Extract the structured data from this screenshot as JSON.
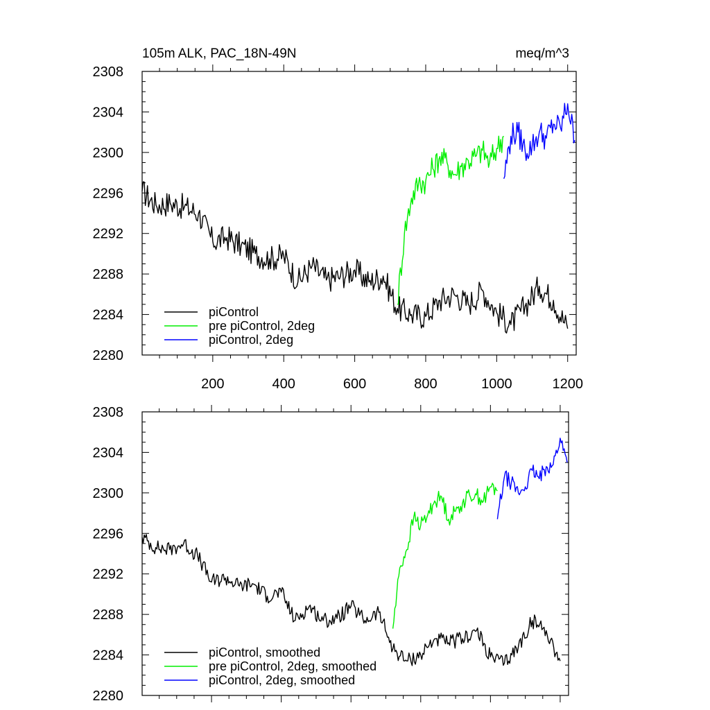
{
  "colors": {
    "piControl": "#000000",
    "pre_piControl_2deg": "#00ee00",
    "piControl_2deg": "#0000ff"
  },
  "chart_data": [
    {
      "type": "line",
      "title": "105m ALK, PAC_18N-49N",
      "units": "meq/m^3",
      "xlim": [
        1,
        1224
      ],
      "ylim": [
        2280,
        2308
      ],
      "xticks": [
        200,
        400,
        600,
        800,
        1000,
        1200
      ],
      "xtick_labels": [
        "200",
        "400",
        "600",
        "800",
        "1000",
        "1200"
      ],
      "yticks": [
        2280,
        2284,
        2288,
        2292,
        2296,
        2300,
        2304,
        2308
      ],
      "ytick_labels": [
        "2280",
        "2284",
        "2288",
        "2292",
        "2296",
        "2300",
        "2304",
        "2308"
      ],
      "grid": false,
      "legend": "bottom-left",
      "series": [
        {
          "name": "piControl",
          "color": "#000000",
          "x": [
            1,
            40,
            80,
            120,
            160,
            200,
            240,
            280,
            320,
            360,
            400,
            440,
            480,
            520,
            560,
            600,
            640,
            680,
            720,
            760,
            800,
            840,
            880,
            920,
            960,
            1000,
            1040,
            1080,
            1120,
            1160,
            1200
          ],
          "y": [
            2296.2,
            2294.8,
            2295.0,
            2294.6,
            2294.0,
            2291.2,
            2291.6,
            2290.8,
            2290.0,
            2289.5,
            2289.8,
            2287.2,
            2288.8,
            2287.4,
            2287.8,
            2288.4,
            2287.2,
            2287.8,
            2284.6,
            2284.0,
            2283.8,
            2285.4,
            2286.0,
            2285.0,
            2286.4,
            2284.2,
            2283.0,
            2284.8,
            2286.8,
            2285.4,
            2282.6
          ]
        },
        {
          "name": "pre piControl, 2deg",
          "color": "#00ee00",
          "x": [
            720,
            740,
            760,
            780,
            800,
            820,
            840,
            860,
            880,
            900,
            920,
            940,
            960,
            980,
            1000,
            1020
          ],
          "y": [
            2285.0,
            2292.0,
            2295.5,
            2297.0,
            2297.2,
            2298.4,
            2299.6,
            2299.0,
            2297.8,
            2298.6,
            2299.2,
            2299.6,
            2300.2,
            2299.0,
            2300.4,
            2301.6
          ]
        },
        {
          "name": "piControl, 2deg",
          "color": "#0000ff",
          "x": [
            1020,
            1040,
            1060,
            1080,
            1100,
            1120,
            1140,
            1160,
            1180,
            1200,
            1220
          ],
          "y": [
            2297.4,
            2301.6,
            2302.0,
            2300.2,
            2300.6,
            2302.0,
            2301.4,
            2302.8,
            2302.4,
            2304.8,
            2301.2
          ]
        }
      ]
    },
    {
      "type": "line",
      "title": "",
      "units": "",
      "xlim": [
        1,
        1224
      ],
      "ylim": [
        2280,
        2308
      ],
      "xticks": [
        200,
        400,
        600,
        800,
        1000,
        1200
      ],
      "xtick_labels": [],
      "yticks": [
        2280,
        2284,
        2288,
        2292,
        2296,
        2300,
        2304,
        2308
      ],
      "ytick_labels": [
        "2280",
        "2284",
        "2288",
        "2292",
        "2296",
        "2300",
        "2304",
        "2308"
      ],
      "grid": false,
      "legend": "bottom-left",
      "series": [
        {
          "name": "piControl, smoothed",
          "color": "#000000",
          "x": [
            1,
            40,
            80,
            120,
            160,
            200,
            240,
            280,
            320,
            360,
            400,
            440,
            480,
            520,
            560,
            600,
            640,
            680,
            720,
            760,
            800,
            840,
            880,
            920,
            960,
            1000,
            1040,
            1080,
            1120,
            1160,
            1200
          ],
          "y": [
            2295.6,
            2294.6,
            2294.4,
            2295.0,
            2293.8,
            2291.2,
            2291.6,
            2290.8,
            2291.0,
            2289.8,
            2290.2,
            2287.4,
            2288.8,
            2287.4,
            2287.6,
            2288.8,
            2287.4,
            2288.2,
            2284.6,
            2283.4,
            2284.0,
            2285.6,
            2285.2,
            2285.6,
            2286.4,
            2283.8,
            2283.2,
            2284.8,
            2287.4,
            2286.4,
            2283.4
          ]
        },
        {
          "name": "pre piControl, 2deg, smoothed",
          "color": "#00ee00",
          "x": [
            720,
            740,
            760,
            780,
            800,
            820,
            840,
            860,
            880,
            900,
            920,
            940,
            960,
            980,
            1000,
            1020
          ],
          "y": [
            2286.6,
            2292.6,
            2294.4,
            2297.6,
            2296.8,
            2297.8,
            2299.2,
            2299.6,
            2297.4,
            2298.2,
            2299.0,
            2299.8,
            2299.8,
            2299.2,
            2300.6,
            2300.2
          ]
        },
        {
          "name": "piControl, 2deg, smoothed",
          "color": "#0000ff",
          "x": [
            1020,
            1040,
            1060,
            1080,
            1100,
            1120,
            1140,
            1160,
            1180,
            1200,
            1220
          ],
          "y": [
            2297.4,
            2301.6,
            2301.0,
            2300.0,
            2300.6,
            2302.2,
            2301.4,
            2302.6,
            2302.8,
            2305.4,
            2303.0
          ]
        }
      ]
    }
  ]
}
